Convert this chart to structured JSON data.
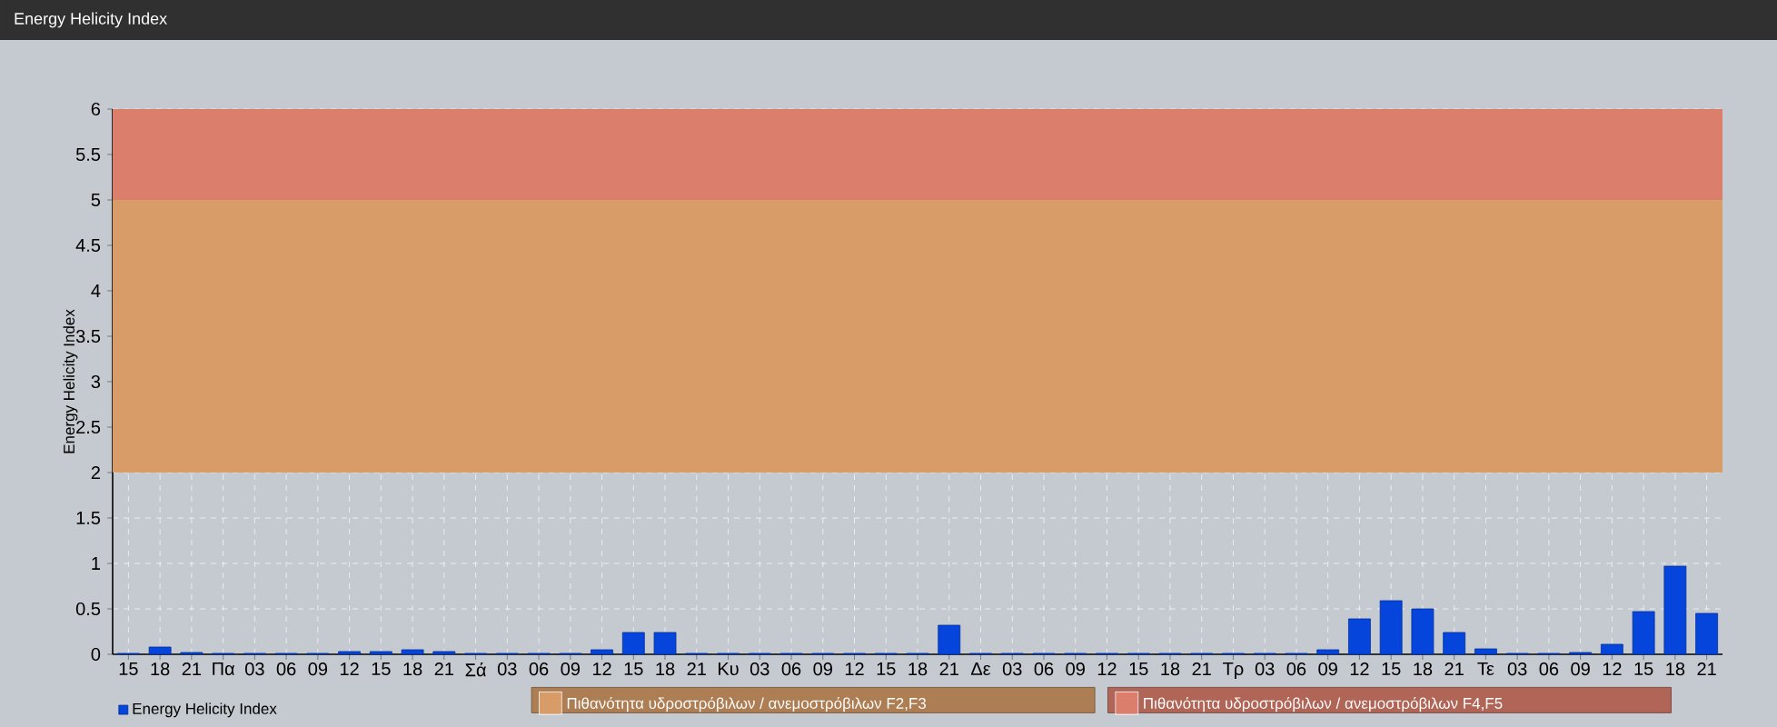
{
  "chart_data": {
    "type": "bar",
    "title": "Energy Helicity Index",
    "ylabel": "Energy Helicity Index",
    "categories": [
      "15",
      "18",
      "21",
      "Πα",
      "03",
      "06",
      "09",
      "12",
      "15",
      "18",
      "21",
      "Σά",
      "03",
      "06",
      "09",
      "12",
      "15",
      "18",
      "21",
      "Κυ",
      "03",
      "06",
      "09",
      "12",
      "15",
      "18",
      "21",
      "Δε",
      "03",
      "06",
      "09",
      "12",
      "15",
      "18",
      "21",
      "Τρ",
      "03",
      "06",
      "09",
      "12",
      "15",
      "18",
      "21",
      "Τε",
      "03",
      "06",
      "09",
      "12",
      "15",
      "18",
      "21"
    ],
    "series": [
      {
        "name": "Energy Helicity Index",
        "color": "#0645dc",
        "values": [
          0.01,
          0.08,
          0.02,
          0.01,
          0.01,
          0.01,
          0.01,
          0.03,
          0.03,
          0.05,
          0.03,
          0.01,
          0.01,
          0.01,
          0.01,
          0.05,
          0.24,
          0.24,
          0.01,
          0.01,
          0.01,
          0.01,
          0.01,
          0.01,
          0.01,
          0.01,
          0.32,
          0.01,
          0.01,
          0.01,
          0.01,
          0.01,
          0.01,
          0.01,
          0.01,
          0.01,
          0.01,
          0.01,
          0.05,
          0.39,
          0.59,
          0.5,
          0.24,
          0.06,
          0.01,
          0.01,
          0.02,
          0.11,
          0.47,
          0.97,
          0.45
        ]
      }
    ],
    "ylim": [
      0,
      6
    ],
    "yticks": [
      0,
      0.5,
      1,
      1.5,
      2,
      2.5,
      3,
      3.5,
      4,
      4.5,
      5,
      5.5,
      6
    ],
    "grid": true,
    "legend": "bottom left",
    "bands": [
      {
        "axis": "y",
        "from": 2,
        "to": 5,
        "label": "Πιθανότητα υδροστρόβιλων / ανεμοστρόβιλων F2,F3",
        "color": "#d89c68"
      },
      {
        "axis": "y",
        "from": 5,
        "to": 6,
        "label": "Πιθανότητα υδροστρόβιλων / ανεμοστρόβιλων F4,F5",
        "color": "#dc7e6c"
      }
    ]
  }
}
